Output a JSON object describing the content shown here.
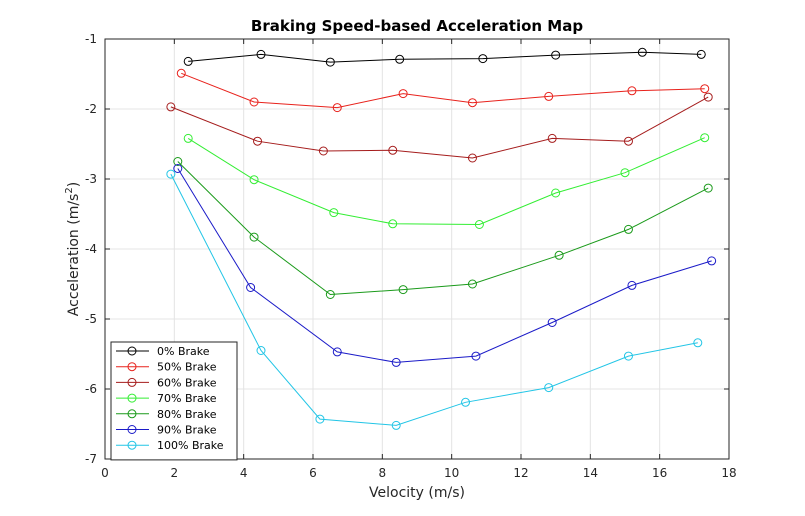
{
  "chart_data": {
    "type": "line",
    "title": "Braking Speed-based Acceleration Map",
    "xlabel": "Velocity (m/s)",
    "ylabel_main": "Acceleration (m/s",
    "ylabel_sup": "2",
    "ylabel_close": ")",
    "xlim": [
      0,
      18
    ],
    "ylim": [
      -7,
      -1
    ],
    "xticks": [
      0,
      2,
      4,
      6,
      8,
      10,
      12,
      14,
      16,
      18
    ],
    "yticks": [
      -1,
      -2,
      -3,
      -4,
      -5,
      -6,
      -7
    ],
    "grid": true,
    "legend_position": "bottom-left",
    "marker": "open-circle",
    "series": [
      {
        "name": "0% Brake",
        "color": "#000000",
        "x": [
          2.4,
          4.5,
          6.5,
          8.5,
          10.9,
          13.0,
          15.5,
          17.2
        ],
        "y": [
          -1.32,
          -1.22,
          -1.33,
          -1.29,
          -1.28,
          -1.23,
          -1.19,
          -1.22
        ]
      },
      {
        "name": "50% Brake",
        "color": "#e8221c",
        "x": [
          2.2,
          4.3,
          6.7,
          8.6,
          10.6,
          12.8,
          15.2,
          17.3
        ],
        "y": [
          -1.49,
          -1.9,
          -1.98,
          -1.78,
          -1.91,
          -1.82,
          -1.74,
          -1.71
        ]
      },
      {
        "name": "60% Brake",
        "color": "#a51c1c",
        "x": [
          1.9,
          4.4,
          6.3,
          8.3,
          10.6,
          12.9,
          15.1,
          17.4
        ],
        "y": [
          -1.97,
          -2.46,
          -2.6,
          -2.59,
          -2.7,
          -2.42,
          -2.46,
          -1.83
        ]
      },
      {
        "name": "70% Brake",
        "color": "#33ee33",
        "x": [
          2.4,
          4.3,
          6.6,
          8.3,
          10.8,
          13.0,
          15.0,
          17.3
        ],
        "y": [
          -2.42,
          -3.01,
          -3.48,
          -3.64,
          -3.65,
          -3.2,
          -2.91,
          -2.41
        ]
      },
      {
        "name": "80% Brake",
        "color": "#1a9a1a",
        "x": [
          2.1,
          4.3,
          6.5,
          8.6,
          10.6,
          13.1,
          15.1,
          17.4
        ],
        "y": [
          -2.75,
          -3.83,
          -4.65,
          -4.58,
          -4.5,
          -4.09,
          -3.72,
          -3.13
        ]
      },
      {
        "name": "90% Brake",
        "color": "#1b1bc8",
        "x": [
          2.1,
          4.2,
          6.7,
          8.4,
          10.7,
          12.9,
          15.2,
          17.5
        ],
        "y": [
          -2.85,
          -4.55,
          -5.47,
          -5.62,
          -5.53,
          -5.05,
          -4.52,
          -4.17
        ]
      },
      {
        "name": "100% Brake",
        "color": "#22c5e6",
        "x": [
          1.9,
          4.5,
          6.2,
          8.4,
          10.4,
          12.8,
          15.1,
          17.1
        ],
        "y": [
          -2.93,
          -5.45,
          -6.43,
          -6.52,
          -6.19,
          -5.98,
          -5.53,
          -5.34
        ]
      }
    ]
  }
}
